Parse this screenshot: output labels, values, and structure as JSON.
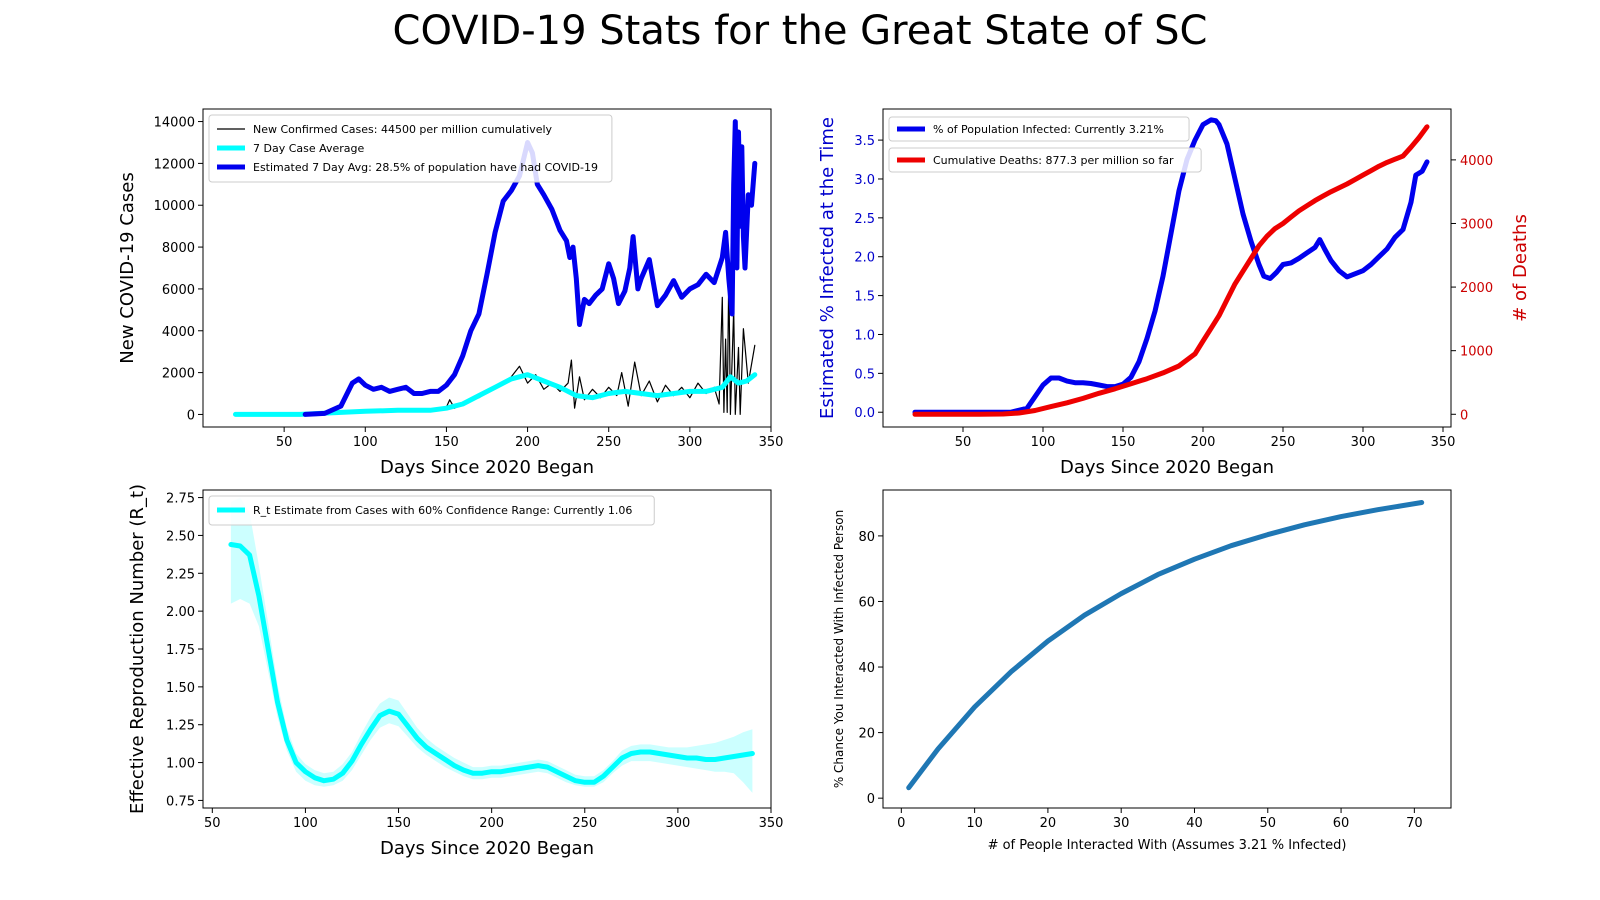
{
  "title": "COVID-19 Stats for the Great State of SC",
  "colors": {
    "cases_raw": "#000000",
    "avg": "#00ffff",
    "estimated": "#0000ee",
    "deaths": "#ee0000",
    "chance": "#1f77b4"
  },
  "chart_data": [
    {
      "id": "cases",
      "type": "line",
      "title": "",
      "xlabel": "Days Since 2020 Began",
      "ylabel": "New COVID-19 Cases",
      "xlim": [
        0,
        350
      ],
      "ylim": [
        -600,
        14600
      ],
      "xticks": [
        50,
        100,
        150,
        200,
        250,
        300,
        350
      ],
      "yticks": [
        0,
        2000,
        4000,
        6000,
        8000,
        10000,
        12000,
        14000
      ],
      "legend_position": "top-left",
      "series": [
        {
          "name": "New Confirmed Cases: 44500 per million cumulatively",
          "color": "#000000",
          "width": 1.2,
          "x": [
            20,
            60,
            80,
            100,
            120,
            140,
            150,
            152,
            155,
            160,
            170,
            180,
            185,
            190,
            195,
            200,
            205,
            210,
            215,
            220,
            225,
            227,
            229,
            232,
            235,
            240,
            245,
            250,
            255,
            258,
            262,
            266,
            270,
            275,
            280,
            285,
            290,
            295,
            300,
            305,
            310,
            315,
            318,
            320,
            321,
            322,
            323,
            324,
            325,
            327,
            328,
            330,
            331,
            333,
            336,
            340
          ],
          "y": [
            0,
            0,
            150,
            200,
            250,
            200,
            350,
            700,
            300,
            500,
            800,
            1300,
            1500,
            1800,
            2300,
            1500,
            1900,
            1200,
            1500,
            1100,
            1500,
            2600,
            300,
            1800,
            700,
            1200,
            800,
            1300,
            900,
            2000,
            400,
            2500,
            900,
            1600,
            600,
            1400,
            900,
            1300,
            800,
            1500,
            1000,
            1300,
            500,
            5600,
            100,
            3600,
            100,
            6800,
            0,
            5000,
            0,
            3200,
            0,
            4100,
            1500,
            3300
          ]
        },
        {
          "name": "7 Day Case Average",
          "color": "#00ffff",
          "width": 5,
          "x": [
            20,
            60,
            80,
            100,
            120,
            140,
            150,
            160,
            170,
            180,
            190,
            200,
            210,
            220,
            230,
            240,
            250,
            260,
            270,
            280,
            290,
            300,
            310,
            320,
            325,
            330,
            335,
            340
          ],
          "y": [
            0,
            0,
            80,
            150,
            200,
            200,
            300,
            500,
            900,
            1300,
            1700,
            1900,
            1600,
            1300,
            900,
            800,
            1000,
            1100,
            1000,
            900,
            1000,
            1100,
            1100,
            1300,
            1800,
            1500,
            1600,
            1900
          ]
        },
        {
          "name": "Estimated 7 Day Avg: 28.5% of population have had COVID-19",
          "color": "#0000ee",
          "width": 5,
          "x": [
            63,
            75,
            85,
            92,
            96,
            100,
            105,
            110,
            115,
            120,
            125,
            130,
            135,
            140,
            145,
            150,
            155,
            160,
            165,
            170,
            175,
            180,
            185,
            190,
            195,
            200,
            203,
            206,
            210,
            215,
            220,
            224,
            226,
            228,
            230,
            232,
            235,
            238,
            242,
            246,
            250,
            253,
            256,
            260,
            263,
            265,
            268,
            270,
            275,
            280,
            285,
            290,
            295,
            300,
            305,
            310,
            315,
            320,
            322,
            324,
            326,
            327,
            328,
            329,
            330,
            331,
            332,
            333,
            334,
            336,
            338,
            340
          ],
          "y": [
            0,
            50,
            400,
            1500,
            1700,
            1400,
            1200,
            1300,
            1100,
            1200,
            1300,
            1000,
            1000,
            1100,
            1100,
            1400,
            1900,
            2800,
            4000,
            4800,
            6700,
            8700,
            10200,
            10700,
            11400,
            13000,
            12500,
            11000,
            10500,
            9800,
            8800,
            8300,
            7500,
            8000,
            6500,
            4300,
            5500,
            5300,
            5700,
            6000,
            7200,
            6500,
            5300,
            5900,
            7000,
            8500,
            6000,
            6500,
            7400,
            5200,
            5700,
            6400,
            5600,
            6000,
            6200,
            6700,
            6300,
            7500,
            8700,
            6500,
            4800,
            11000,
            14000,
            7000,
            13500,
            9000,
            12800,
            8500,
            7000,
            10500,
            10000,
            12000
          ]
        }
      ]
    },
    {
      "id": "infected",
      "type": "line",
      "title": "",
      "xlabel": "Days Since 2020 Began",
      "ylabel": "Estimated % Infected at the Time",
      "y2label": "# of Deaths",
      "xlim": [
        0,
        355
      ],
      "ylim": [
        -0.19,
        3.9
      ],
      "y2lim": [
        -200,
        4800
      ],
      "xticks": [
        50,
        100,
        150,
        200,
        250,
        300,
        350
      ],
      "yticks": [
        0.0,
        0.5,
        1.0,
        1.5,
        2.0,
        2.5,
        3.0,
        3.5
      ],
      "y2ticks": [
        0,
        1000,
        2000,
        3000,
        4000
      ],
      "legend_position": "top-left",
      "series": [
        {
          "name": "% of Population Infected: Currently 3.21%",
          "axis": "left",
          "color": "#0000ee",
          "width": 5,
          "x": [
            20,
            80,
            90,
            95,
            100,
            105,
            110,
            115,
            120,
            125,
            130,
            135,
            140,
            145,
            150,
            155,
            160,
            165,
            170,
            175,
            180,
            185,
            190,
            195,
            200,
            205,
            208,
            210,
            215,
            220,
            225,
            230,
            235,
            238,
            242,
            246,
            250,
            255,
            260,
            265,
            270,
            273,
            276,
            280,
            285,
            290,
            295,
            300,
            305,
            310,
            315,
            320,
            325,
            330,
            333,
            337,
            340
          ],
          "y": [
            0,
            0,
            0.05,
            0.2,
            0.35,
            0.44,
            0.44,
            0.4,
            0.38,
            0.38,
            0.37,
            0.35,
            0.33,
            0.33,
            0.36,
            0.45,
            0.65,
            0.95,
            1.3,
            1.75,
            2.3,
            2.85,
            3.25,
            3.5,
            3.7,
            3.76,
            3.75,
            3.7,
            3.45,
            3.0,
            2.55,
            2.2,
            1.9,
            1.75,
            1.72,
            1.8,
            1.9,
            1.92,
            1.98,
            2.05,
            2.12,
            2.22,
            2.1,
            1.95,
            1.82,
            1.74,
            1.78,
            1.82,
            1.9,
            2.0,
            2.1,
            2.25,
            2.35,
            2.7,
            3.05,
            3.1,
            3.22
          ]
        },
        {
          "name": "Cumulative Deaths: 877.3 per million so far",
          "axis": "right",
          "color": "#ee0000",
          "width": 5,
          "x": [
            20,
            60,
            75,
            85,
            95,
            105,
            115,
            125,
            135,
            145,
            155,
            165,
            175,
            185,
            195,
            200,
            205,
            210,
            215,
            220,
            225,
            230,
            235,
            240,
            245,
            250,
            255,
            260,
            265,
            270,
            275,
            280,
            285,
            290,
            295,
            300,
            305,
            310,
            315,
            320,
            325,
            330,
            335,
            340
          ],
          "y": [
            0,
            0,
            5,
            20,
            60,
            120,
            180,
            250,
            330,
            400,
            480,
            560,
            650,
            760,
            950,
            1150,
            1350,
            1550,
            1800,
            2050,
            2250,
            2450,
            2650,
            2800,
            2920,
            3000,
            3100,
            3200,
            3280,
            3360,
            3430,
            3500,
            3560,
            3620,
            3690,
            3760,
            3830,
            3900,
            3960,
            4010,
            4060,
            4200,
            4350,
            4520
          ]
        }
      ]
    },
    {
      "id": "rt",
      "type": "line",
      "title": "",
      "xlabel": "Days Since 2020 Began",
      "ylabel": "Effective Reproduction Number (R_t)",
      "xlim": [
        45,
        350
      ],
      "ylim": [
        0.7,
        2.8
      ],
      "xticks": [
        50,
        100,
        150,
        200,
        250,
        300,
        350
      ],
      "yticks": [
        0.75,
        1.0,
        1.25,
        1.5,
        1.75,
        2.0,
        2.25,
        2.5,
        2.75
      ],
      "legend_position": "top-left",
      "series": [
        {
          "name": "R_t Estimate from Cases with 60% Confidence Range: Currently 1.06",
          "color": "#00ffff",
          "width": 5,
          "x": [
            60,
            65,
            70,
            75,
            80,
            85,
            90,
            95,
            100,
            105,
            110,
            115,
            120,
            125,
            130,
            135,
            140,
            145,
            150,
            155,
            160,
            165,
            170,
            175,
            180,
            185,
            190,
            195,
            200,
            205,
            210,
            215,
            220,
            225,
            230,
            235,
            240,
            245,
            250,
            255,
            260,
            265,
            270,
            275,
            280,
            285,
            290,
            295,
            300,
            305,
            310,
            315,
            320,
            325,
            330,
            335,
            340
          ],
          "y": [
            2.44,
            2.43,
            2.37,
            2.1,
            1.75,
            1.4,
            1.15,
            1.0,
            0.94,
            0.9,
            0.88,
            0.89,
            0.93,
            1.01,
            1.12,
            1.22,
            1.31,
            1.34,
            1.32,
            1.24,
            1.16,
            1.1,
            1.06,
            1.02,
            0.98,
            0.95,
            0.93,
            0.93,
            0.94,
            0.94,
            0.95,
            0.96,
            0.97,
            0.98,
            0.97,
            0.94,
            0.91,
            0.88,
            0.87,
            0.87,
            0.91,
            0.97,
            1.03,
            1.06,
            1.07,
            1.07,
            1.06,
            1.05,
            1.04,
            1.03,
            1.03,
            1.02,
            1.02,
            1.03,
            1.04,
            1.05,
            1.06
          ],
          "band_lower": [
            2.05,
            2.08,
            2.05,
            1.9,
            1.6,
            1.3,
            1.08,
            0.94,
            0.88,
            0.85,
            0.84,
            0.85,
            0.88,
            0.95,
            1.05,
            1.15,
            1.23,
            1.26,
            1.24,
            1.17,
            1.1,
            1.05,
            1.01,
            0.97,
            0.94,
            0.91,
            0.89,
            0.89,
            0.9,
            0.9,
            0.91,
            0.92,
            0.93,
            0.94,
            0.93,
            0.9,
            0.87,
            0.85,
            0.84,
            0.84,
            0.87,
            0.93,
            0.98,
            1.01,
            1.01,
            1.01,
            1.0,
            0.99,
            0.98,
            0.97,
            0.96,
            0.95,
            0.94,
            0.94,
            0.93,
            0.87,
            0.8
          ],
          "band_upper": [
            2.72,
            2.75,
            2.65,
            2.3,
            1.92,
            1.52,
            1.23,
            1.06,
            0.99,
            0.95,
            0.93,
            0.94,
            0.99,
            1.07,
            1.19,
            1.3,
            1.39,
            1.43,
            1.41,
            1.32,
            1.23,
            1.16,
            1.11,
            1.07,
            1.03,
            1.0,
            0.97,
            0.97,
            0.98,
            0.98,
            0.99,
            1.0,
            1.01,
            1.02,
            1.01,
            0.98,
            0.95,
            0.92,
            0.91,
            0.91,
            0.95,
            1.01,
            1.08,
            1.11,
            1.12,
            1.12,
            1.11,
            1.1,
            1.1,
            1.1,
            1.11,
            1.12,
            1.13,
            1.15,
            1.17,
            1.2,
            1.22
          ]
        }
      ]
    },
    {
      "id": "chance",
      "type": "line",
      "title": "",
      "xlabel": "# of People Interacted With (Assumes 3.21 % Infected)",
      "ylabel": "% Chance You Interacted With Infected Person",
      "xlim": [
        -2.5,
        75
      ],
      "ylim": [
        -3,
        94
      ],
      "xticks": [
        0,
        10,
        20,
        30,
        40,
        50,
        60,
        70
      ],
      "yticks": [
        0,
        20,
        40,
        60,
        80
      ],
      "legend_position": "none",
      "series": [
        {
          "color": "#1f77b4",
          "width": 5,
          "x": [
            1,
            5,
            10,
            15,
            20,
            25,
            30,
            35,
            40,
            45,
            50,
            55,
            60,
            65,
            71
          ],
          "y": [
            3.2,
            15.0,
            27.8,
            38.6,
            47.9,
            55.8,
            62.4,
            68.2,
            72.9,
            77.0,
            80.4,
            83.4,
            85.9,
            88.0,
            90.2
          ]
        }
      ]
    }
  ]
}
